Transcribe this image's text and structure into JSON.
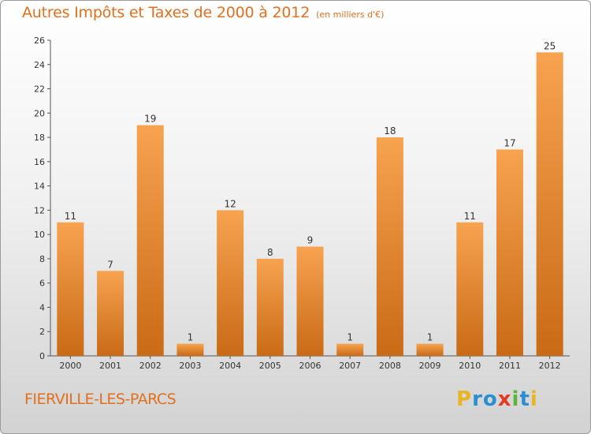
{
  "chart_data": {
    "type": "bar",
    "title": "Autres Impôts et Taxes de 2000 à 2012",
    "subtitle": "(en milliers d'€)",
    "categories": [
      "2000",
      "2001",
      "2002",
      "2003",
      "2004",
      "2005",
      "2006",
      "2007",
      "2008",
      "2009",
      "2010",
      "2011",
      "2012"
    ],
    "values": [
      11,
      7,
      19,
      1,
      12,
      8,
      9,
      1,
      18,
      1,
      11,
      17,
      25
    ],
    "ylim": [
      0,
      26
    ],
    "yticks": [
      0,
      2,
      4,
      6,
      8,
      10,
      12,
      14,
      16,
      18,
      20,
      22,
      24,
      26
    ],
    "grid": false,
    "bar_color_top": "#f7a350",
    "bar_color_bottom": "#c96a16",
    "title_color": "#e1701f"
  },
  "footer": {
    "commune": "FIERVILLE-LES-PARCS"
  },
  "brand": {
    "logo_text": "Proxiti",
    "letter_colors": [
      "#e8b420",
      "#2a8ed1",
      "#2a8ed1",
      "#e23b22",
      "#5db43a",
      "#2a8ed1",
      "#e8b420"
    ]
  }
}
